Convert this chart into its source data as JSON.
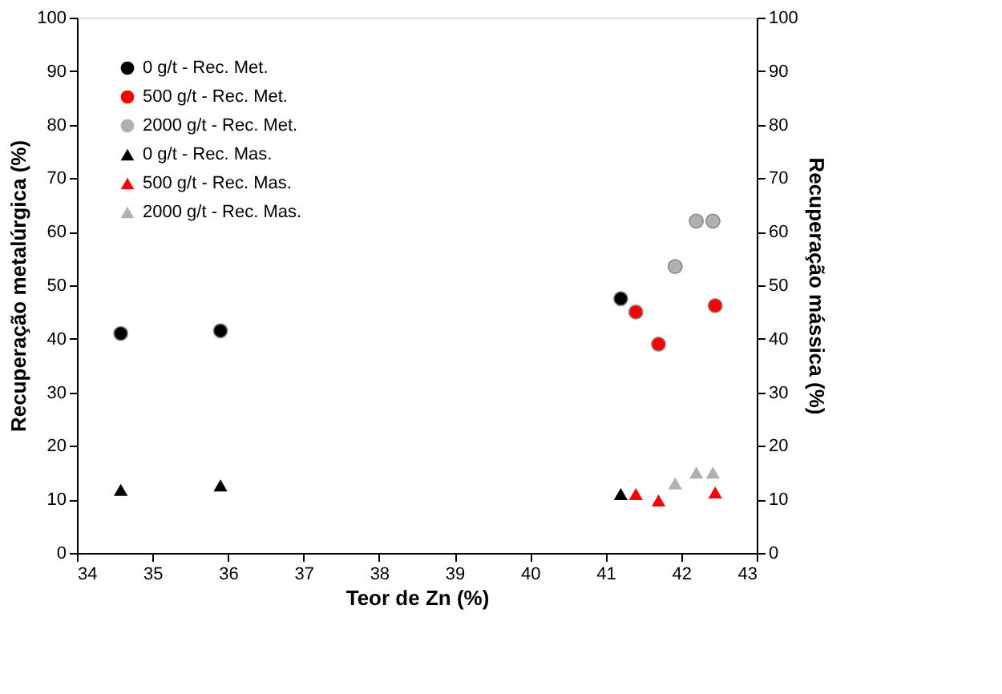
{
  "chart_data": {
    "type": "scatter",
    "xlabel": "Teor de Zn (%)",
    "ylabel": "Recuperação metalúrgica (%)",
    "y2label": "Recuperação mássica (%)",
    "xlim": [
      34,
      43
    ],
    "xticks": [
      34,
      35,
      36,
      37,
      38,
      39,
      40,
      41,
      42,
      43
    ],
    "ylim": [
      0,
      100
    ],
    "yticks": [
      0,
      10,
      20,
      30,
      40,
      50,
      60,
      70,
      80,
      90,
      100
    ],
    "y2lim": [
      0,
      100
    ],
    "y2ticks": [
      0,
      10,
      20,
      30,
      40,
      50,
      60,
      70,
      80,
      90,
      100
    ],
    "grid": false,
    "legend": "top left",
    "series": [
      {
        "name": "0 g/t - Rec. Met.",
        "color": "#000000",
        "marker": "circle",
        "x": [
          34.58,
          35.9,
          41.2
        ],
        "values": [
          41,
          41.5,
          47.5
        ]
      },
      {
        "name": "500 g/t - Rec. Met.",
        "color": "#ff0000",
        "marker": "circle",
        "x": [
          41.4,
          41.7,
          42.45
        ],
        "values": [
          45,
          39,
          46.2
        ]
      },
      {
        "name": "2000 g/t - Rec. Met.",
        "color": "#b0b0b0",
        "marker": "circle",
        "x": [
          41.92,
          42.2,
          42.42
        ],
        "values": [
          53.5,
          62,
          62
        ]
      },
      {
        "name": "0 g/t - Rec. Mas.",
        "color": "#000000",
        "marker": "triangle",
        "axis": "y2",
        "x": [
          34.58,
          35.9,
          41.2
        ],
        "values": [
          11.8,
          12.6,
          11
        ]
      },
      {
        "name": "500 g/t - Rec. Mas.",
        "color": "#ff0000",
        "marker": "triangle",
        "axis": "y2",
        "x": [
          41.4,
          41.7,
          42.45
        ],
        "values": [
          11,
          9.8,
          11.3
        ]
      },
      {
        "name": "2000 g/t - Rec. Mas.",
        "color": "#b0b0b0",
        "marker": "triangle",
        "axis": "y2",
        "x": [
          41.92,
          42.2,
          42.42
        ],
        "values": [
          13,
          15,
          15
        ]
      }
    ]
  }
}
